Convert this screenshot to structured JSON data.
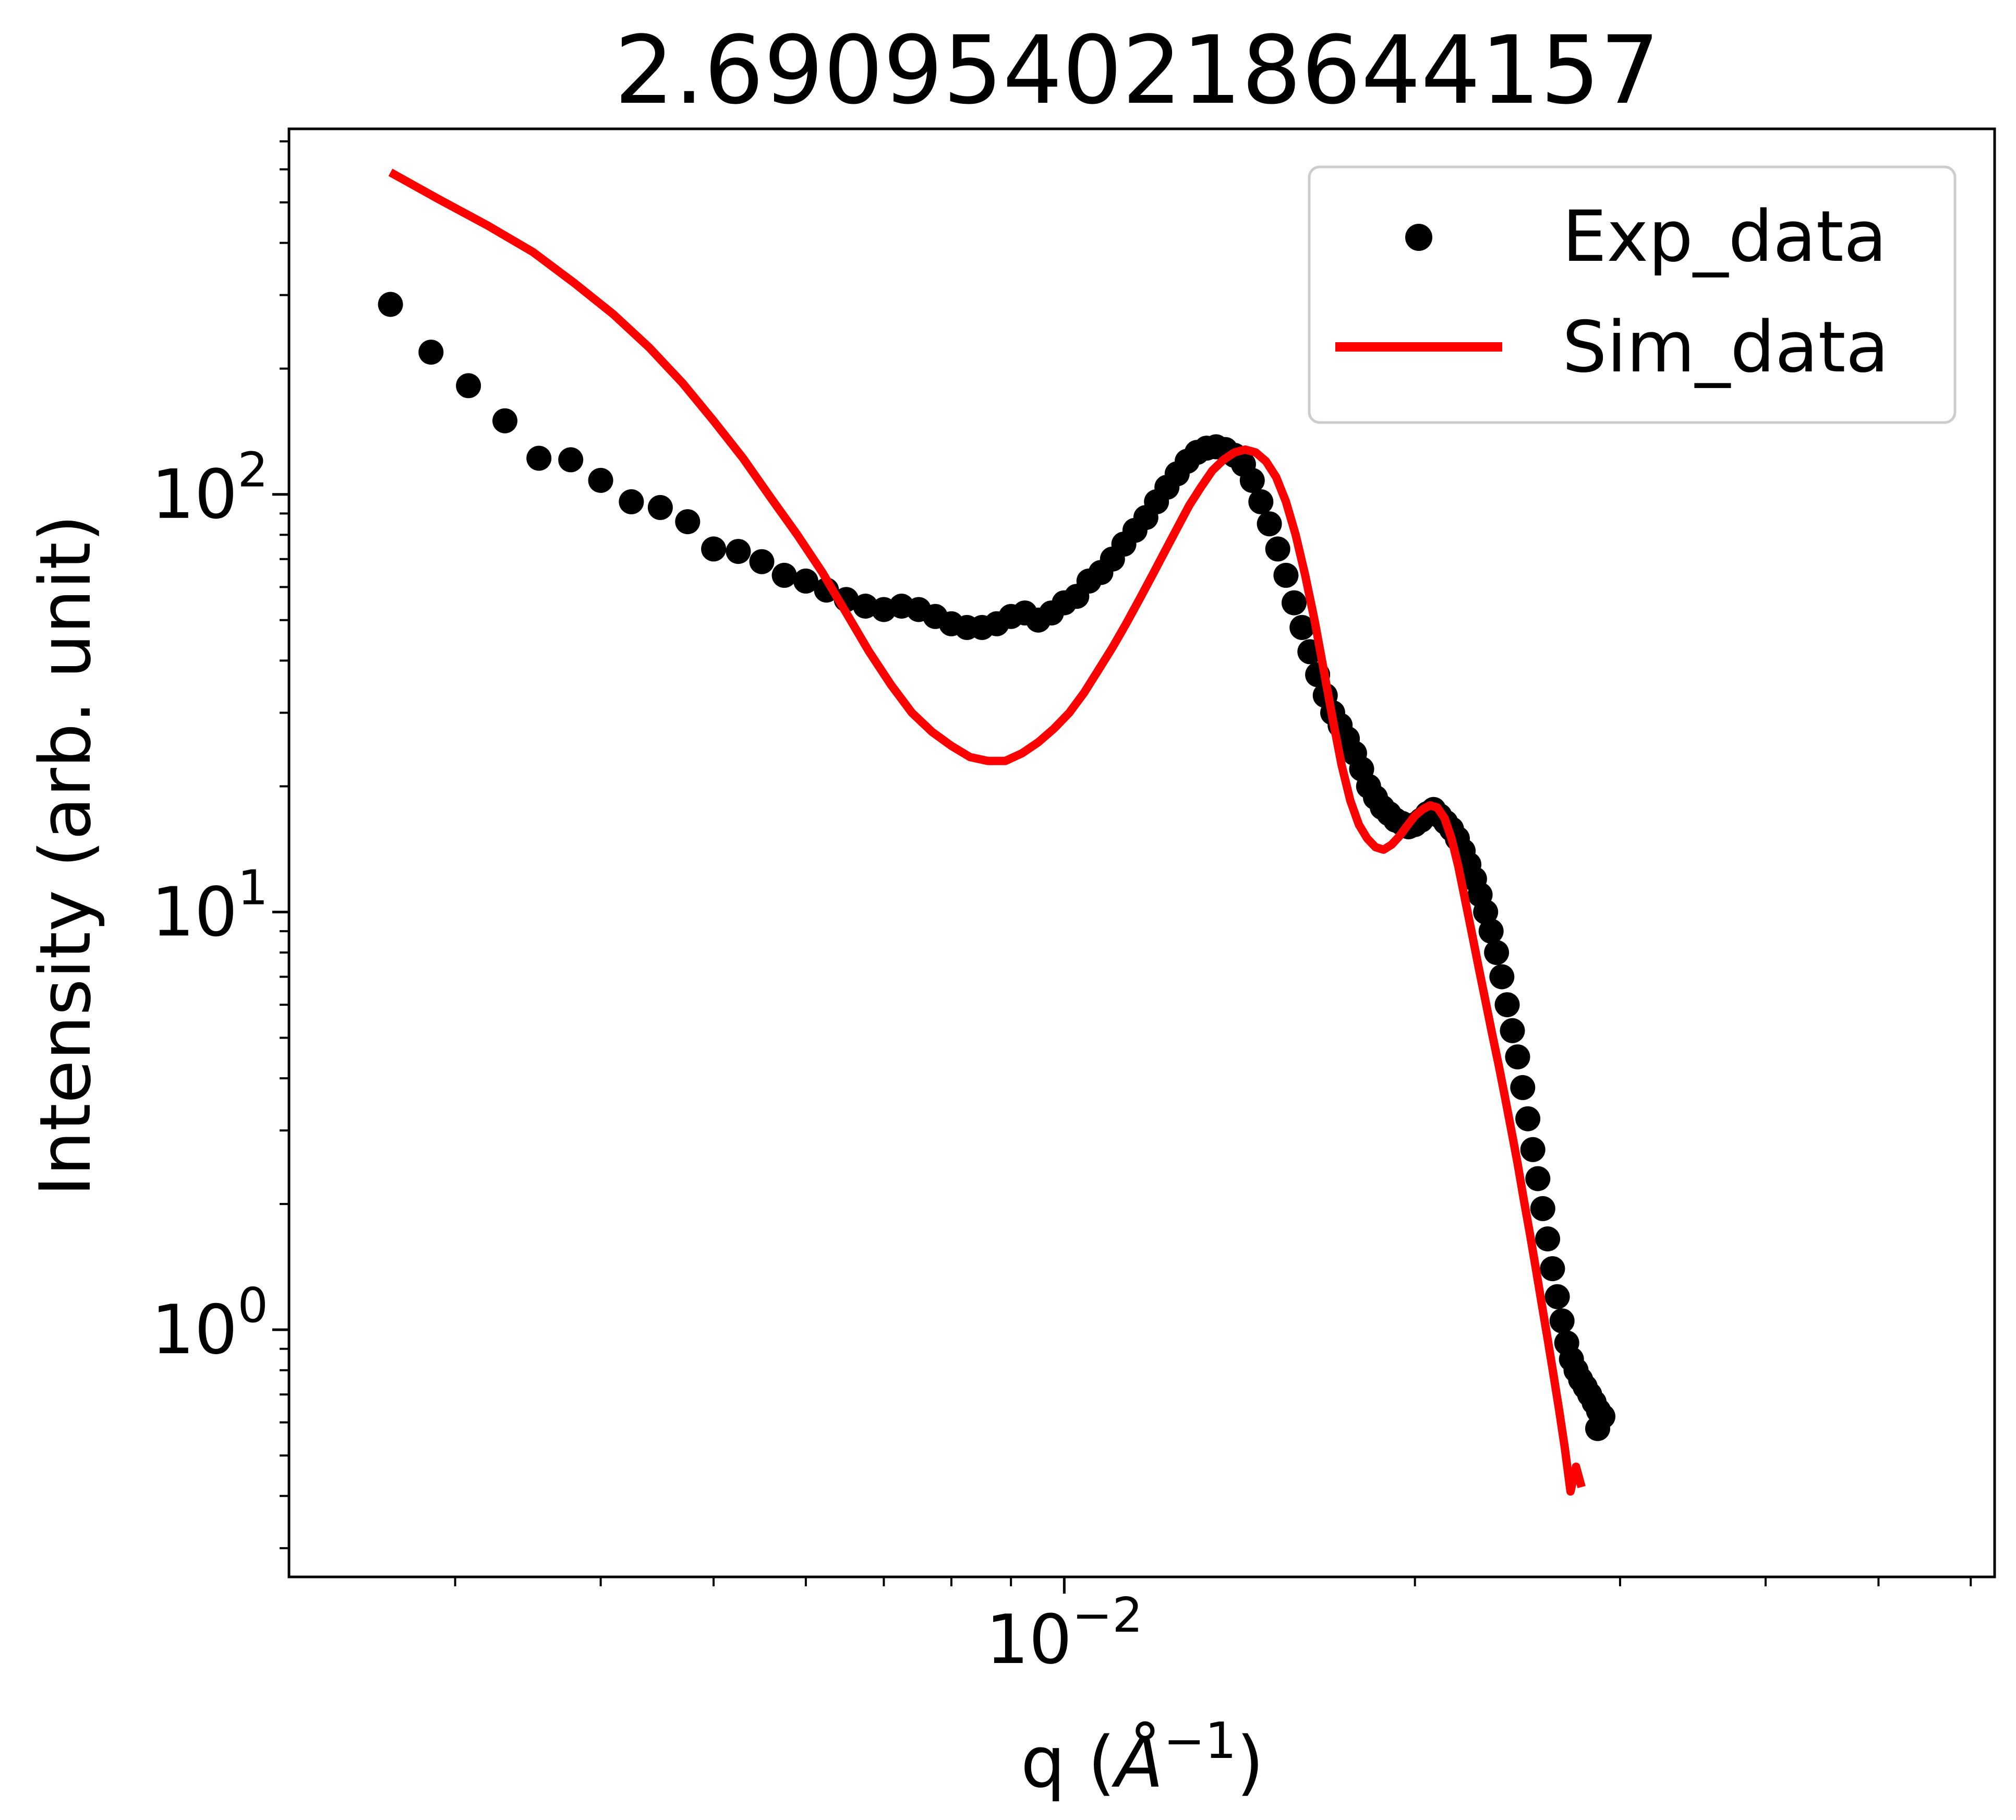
{
  "chart_data": {
    "type": "scatter+line",
    "title": "2.6909540218644157",
    "xlabel": "q (Å⁻¹)",
    "ylabel": "Intensity (arb. unit)",
    "xscale": "log",
    "yscale": "log",
    "xlim": [
      0.00216,
      0.0629
    ],
    "ylim": [
      0.256,
      750
    ],
    "grid": false,
    "legend_position": "top-right",
    "x_ticks": [
      {
        "value": 0.01,
        "base": "10",
        "exp": "−2"
      }
    ],
    "y_ticks": [
      {
        "value": 1,
        "base": "10",
        "exp": "0"
      },
      {
        "value": 10,
        "base": "10",
        "exp": "1"
      },
      {
        "value": 100,
        "base": "10",
        "exp": "2"
      }
    ],
    "colors": {
      "exp": "#000000",
      "sim": "#ff0000"
    },
    "series": [
      {
        "name": "Exp_data",
        "kind": "scatter",
        "marker": "circle",
        "color": "#000000",
        "points": [
          [
            0.00264,
            285
          ],
          [
            0.00286,
            219
          ],
          [
            0.00308,
            182
          ],
          [
            0.00331,
            150
          ],
          [
            0.00354,
            122
          ],
          [
            0.00377,
            121
          ],
          [
            0.004,
            108
          ],
          [
            0.00425,
            96
          ],
          [
            0.0045,
            93
          ],
          [
            0.00475,
            86
          ],
          [
            0.005,
            74
          ],
          [
            0.00525,
            73
          ],
          [
            0.0055,
            69
          ],
          [
            0.00575,
            64
          ],
          [
            0.006,
            62
          ],
          [
            0.00625,
            59
          ],
          [
            0.0065,
            56
          ],
          [
            0.00675,
            54
          ],
          [
            0.007,
            53
          ],
          [
            0.00725,
            54
          ],
          [
            0.0075,
            53
          ],
          [
            0.00775,
            51
          ],
          [
            0.008,
            49
          ],
          [
            0.00825,
            48
          ],
          [
            0.0085,
            48
          ],
          [
            0.00875,
            49
          ],
          [
            0.009,
            51
          ],
          [
            0.00925,
            52
          ],
          [
            0.0095,
            50
          ],
          [
            0.00975,
            52
          ],
          [
            0.01,
            55
          ],
          [
            0.01025,
            57
          ],
          [
            0.0105,
            62
          ],
          [
            0.01075,
            65
          ],
          [
            0.011,
            70
          ],
          [
            0.01125,
            76
          ],
          [
            0.0115,
            82
          ],
          [
            0.01175,
            88
          ],
          [
            0.012,
            96
          ],
          [
            0.01225,
            104
          ],
          [
            0.0125,
            112
          ],
          [
            0.01275,
            120
          ],
          [
            0.013,
            126
          ],
          [
            0.01325,
            129
          ],
          [
            0.0135,
            130
          ],
          [
            0.01375,
            128
          ],
          [
            0.014,
            124
          ],
          [
            0.01425,
            118
          ],
          [
            0.0145,
            108
          ],
          [
            0.01475,
            96
          ],
          [
            0.015,
            85
          ],
          [
            0.01525,
            74
          ],
          [
            0.0155,
            64
          ],
          [
            0.01575,
            55
          ],
          [
            0.016,
            48
          ],
          [
            0.01625,
            42
          ],
          [
            0.0165,
            37
          ],
          [
            0.01675,
            33
          ],
          [
            0.017,
            30
          ],
          [
            0.01725,
            28
          ],
          [
            0.0175,
            26
          ],
          [
            0.01775,
            24
          ],
          [
            0.018,
            22
          ],
          [
            0.01825,
            20
          ],
          [
            0.0185,
            18.8
          ],
          [
            0.01875,
            17.8
          ],
          [
            0.019,
            17.2
          ],
          [
            0.01925,
            16.6
          ],
          [
            0.0195,
            16.3
          ],
          [
            0.01975,
            16.0
          ],
          [
            0.02,
            16.2
          ],
          [
            0.02025,
            16.6
          ],
          [
            0.0205,
            17.2
          ],
          [
            0.02075,
            17.6
          ],
          [
            0.021,
            17.0
          ],
          [
            0.02125,
            16.4
          ],
          [
            0.0215,
            15.8
          ],
          [
            0.02175,
            15.0
          ],
          [
            0.022,
            14.0
          ],
          [
            0.02225,
            13.0
          ],
          [
            0.0225,
            12.0
          ],
          [
            0.02275,
            11.0
          ],
          [
            0.023,
            10.0
          ],
          [
            0.02325,
            9.0
          ],
          [
            0.0235,
            8.0
          ],
          [
            0.02375,
            7.0
          ],
          [
            0.024,
            6.0
          ],
          [
            0.02425,
            5.2
          ],
          [
            0.0245,
            4.5
          ],
          [
            0.02475,
            3.8
          ],
          [
            0.025,
            3.2
          ],
          [
            0.02525,
            2.7
          ],
          [
            0.0255,
            2.3
          ],
          [
            0.02575,
            1.95
          ],
          [
            0.026,
            1.65
          ],
          [
            0.02625,
            1.4
          ],
          [
            0.0265,
            1.2
          ],
          [
            0.02675,
            1.05
          ],
          [
            0.027,
            0.93
          ],
          [
            0.02725,
            0.85
          ],
          [
            0.0275,
            0.8
          ],
          [
            0.02775,
            0.76
          ],
          [
            0.028,
            0.73
          ],
          [
            0.02825,
            0.7
          ],
          [
            0.0285,
            0.67
          ],
          [
            0.02875,
            0.64
          ],
          [
            0.029,
            0.62
          ],
          [
            0.0287,
            0.58
          ]
        ]
      },
      {
        "name": "Sim_data",
        "kind": "line",
        "color": "#ff0000",
        "points": [
          [
            0.00264,
            590
          ],
          [
            0.0029,
            510
          ],
          [
            0.0032,
            440
          ],
          [
            0.0035,
            380
          ],
          [
            0.0038,
            320
          ],
          [
            0.0041,
            270
          ],
          [
            0.0044,
            225
          ],
          [
            0.0047,
            185
          ],
          [
            0.005,
            150
          ],
          [
            0.0053,
            122
          ],
          [
            0.0056,
            98
          ],
          [
            0.0059,
            80
          ],
          [
            0.0062,
            65
          ],
          [
            0.0065,
            52
          ],
          [
            0.0068,
            42
          ],
          [
            0.0071,
            35
          ],
          [
            0.0074,
            30
          ],
          [
            0.0077,
            27
          ],
          [
            0.008,
            25
          ],
          [
            0.0083,
            23.5
          ],
          [
            0.0086,
            23.0
          ],
          [
            0.0089,
            23.0
          ],
          [
            0.0092,
            24.0
          ],
          [
            0.0095,
            25.5
          ],
          [
            0.0098,
            27.5
          ],
          [
            0.0101,
            30
          ],
          [
            0.0104,
            33.5
          ],
          [
            0.0107,
            38
          ],
          [
            0.011,
            43
          ],
          [
            0.0113,
            49
          ],
          [
            0.0116,
            56
          ],
          [
            0.0119,
            64
          ],
          [
            0.0122,
            73
          ],
          [
            0.0125,
            83
          ],
          [
            0.0128,
            94
          ],
          [
            0.0131,
            104
          ],
          [
            0.0134,
            114
          ],
          [
            0.0137,
            121
          ],
          [
            0.014,
            126
          ],
          [
            0.0143,
            128
          ],
          [
            0.0146,
            126
          ],
          [
            0.0149,
            120
          ],
          [
            0.0152,
            110
          ],
          [
            0.0155,
            96
          ],
          [
            0.0158,
            80
          ],
          [
            0.0161,
            64
          ],
          [
            0.0164,
            50
          ],
          [
            0.0167,
            38
          ],
          [
            0.017,
            29
          ],
          [
            0.0173,
            22.5
          ],
          [
            0.0176,
            18.5
          ],
          [
            0.0179,
            16.2
          ],
          [
            0.0182,
            15.0
          ],
          [
            0.0185,
            14.3
          ],
          [
            0.0188,
            14.1
          ],
          [
            0.0191,
            14.5
          ],
          [
            0.0194,
            15.2
          ],
          [
            0.0197,
            16.1
          ],
          [
            0.02,
            17.0
          ],
          [
            0.0203,
            17.6
          ],
          [
            0.0206,
            18.0
          ],
          [
            0.0209,
            17.8
          ],
          [
            0.0212,
            16.8
          ],
          [
            0.0215,
            15.0
          ],
          [
            0.0218,
            12.8
          ],
          [
            0.0221,
            10.6
          ],
          [
            0.0224,
            8.8
          ],
          [
            0.0227,
            7.3
          ],
          [
            0.023,
            6.1
          ],
          [
            0.0233,
            5.1
          ],
          [
            0.0236,
            4.3
          ],
          [
            0.0239,
            3.6
          ],
          [
            0.0242,
            3.0
          ],
          [
            0.0245,
            2.5
          ],
          [
            0.0248,
            2.05
          ],
          [
            0.0251,
            1.7
          ],
          [
            0.0254,
            1.4
          ],
          [
            0.0257,
            1.15
          ],
          [
            0.026,
            0.95
          ],
          [
            0.0263,
            0.78
          ],
          [
            0.0266,
            0.64
          ],
          [
            0.0269,
            0.52
          ],
          [
            0.0272,
            0.41
          ],
          [
            0.0275,
            0.47
          ],
          [
            0.0278,
            0.42
          ]
        ]
      }
    ]
  }
}
